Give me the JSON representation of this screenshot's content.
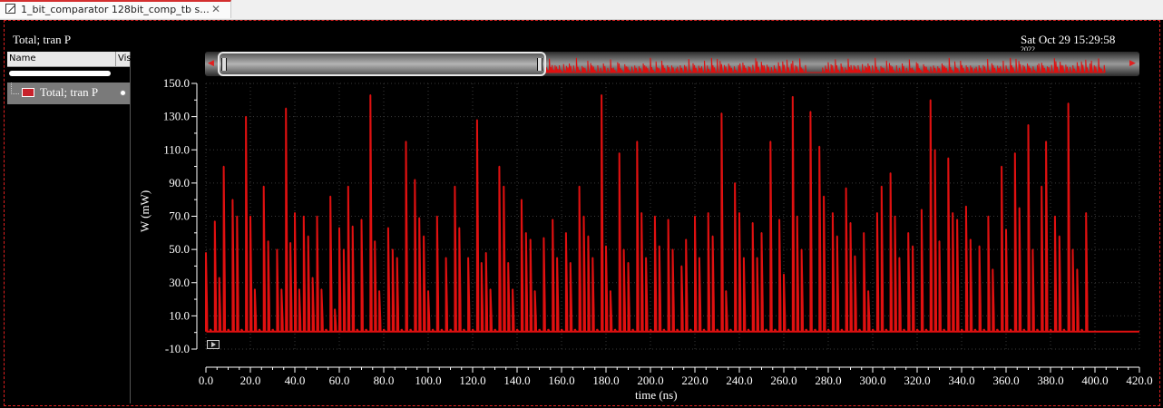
{
  "tab": {
    "label": "1_bit_comparator 128bit_comp_tb s...",
    "close": "✕"
  },
  "header": {
    "title": "Total; tran P",
    "datetime": "Sat Oct 29 15:29:58",
    "datetime_line2": "2022"
  },
  "legend": {
    "col_name": "Name",
    "col_vis": "Vis",
    "items": [
      {
        "label": "Total; tran P",
        "color": "#c8222b"
      }
    ]
  },
  "chart_data": {
    "type": "line",
    "title": "Total; tran P",
    "xlabel": "time (ns)",
    "ylabel": "W (mW)",
    "xlim": [
      0,
      420
    ],
    "ylim": [
      -10,
      150
    ],
    "grid": true,
    "series_color": "#e01010",
    "xticks": [
      "0.0",
      "20.0",
      "40.0",
      "60.0",
      "80.0",
      "100.0",
      "120.0",
      "140.0",
      "160.0",
      "180.0",
      "200.0",
      "220.0",
      "240.0",
      "260.0",
      "280.0",
      "300.0",
      "320.0",
      "340.0",
      "360.0",
      "380.0",
      "400.0",
      "420.0"
    ],
    "yticks": [
      "150.0",
      "130.0",
      "110.0",
      "90.0",
      "70.0",
      "50.0",
      "30.0",
      "10.0",
      "-10.0"
    ],
    "series": [
      {
        "name": "Total; tran P",
        "peaks": [
          [
            0,
            48
          ],
          [
            2,
            2
          ],
          [
            4,
            67
          ],
          [
            6,
            33
          ],
          [
            8,
            100
          ],
          [
            10,
            2
          ],
          [
            12,
            80
          ],
          [
            14,
            70
          ],
          [
            16,
            2
          ],
          [
            18,
            130
          ],
          [
            20,
            70
          ],
          [
            22,
            26
          ],
          [
            24,
            2
          ],
          [
            26,
            88
          ],
          [
            28,
            55
          ],
          [
            30,
            2
          ],
          [
            32,
            50
          ],
          [
            34,
            26
          ],
          [
            36,
            135
          ],
          [
            38,
            54
          ],
          [
            40,
            72
          ],
          [
            42,
            26
          ],
          [
            44,
            70
          ],
          [
            46,
            58
          ],
          [
            48,
            33
          ],
          [
            50,
            70
          ],
          [
            52,
            26
          ],
          [
            54,
            2
          ],
          [
            56,
            82
          ],
          [
            58,
            14
          ],
          [
            60,
            63
          ],
          [
            62,
            50
          ],
          [
            64,
            88
          ],
          [
            66,
            64
          ],
          [
            68,
            2
          ],
          [
            70,
            68
          ],
          [
            72,
            2
          ],
          [
            74,
            143
          ],
          [
            76,
            55
          ],
          [
            78,
            25
          ],
          [
            80,
            2
          ],
          [
            82,
            63
          ],
          [
            84,
            50
          ],
          [
            86,
            45
          ],
          [
            88,
            2
          ],
          [
            90,
            115
          ],
          [
            92,
            2
          ],
          [
            94,
            92
          ],
          [
            96,
            69
          ],
          [
            98,
            58
          ],
          [
            100,
            25
          ],
          [
            102,
            2
          ],
          [
            104,
            70
          ],
          [
            106,
            2
          ],
          [
            108,
            45
          ],
          [
            110,
            2
          ],
          [
            112,
            88
          ],
          [
            114,
            63
          ],
          [
            116,
            2
          ],
          [
            118,
            45
          ],
          [
            120,
            2
          ],
          [
            122,
            128
          ],
          [
            124,
            42
          ],
          [
            126,
            48
          ],
          [
            128,
            26
          ],
          [
            130,
            2
          ],
          [
            132,
            100
          ],
          [
            134,
            88
          ],
          [
            136,
            42
          ],
          [
            138,
            26
          ],
          [
            140,
            2
          ],
          [
            142,
            80
          ],
          [
            144,
            60
          ],
          [
            146,
            56
          ],
          [
            148,
            25
          ],
          [
            150,
            2
          ],
          [
            152,
            57
          ],
          [
            154,
            2
          ],
          [
            156,
            68
          ],
          [
            158,
            45
          ],
          [
            160,
            2
          ],
          [
            162,
            60
          ],
          [
            164,
            42
          ],
          [
            166,
            2
          ],
          [
            168,
            88
          ],
          [
            170,
            70
          ],
          [
            172,
            58
          ],
          [
            174,
            45
          ],
          [
            176,
            2
          ],
          [
            178,
            143
          ],
          [
            180,
            52
          ],
          [
            182,
            25
          ],
          [
            184,
            2
          ],
          [
            186,
            108
          ],
          [
            188,
            50
          ],
          [
            190,
            42
          ],
          [
            192,
            2
          ],
          [
            194,
            115
          ],
          [
            196,
            72
          ],
          [
            198,
            45
          ],
          [
            200,
            2
          ],
          [
            202,
            70
          ],
          [
            204,
            52
          ],
          [
            206,
            2
          ],
          [
            208,
            68
          ],
          [
            210,
            50
          ],
          [
            212,
            2
          ],
          [
            214,
            40
          ],
          [
            216,
            56
          ],
          [
            218,
            2
          ],
          [
            220,
            70
          ],
          [
            222,
            45
          ],
          [
            224,
            2
          ],
          [
            226,
            72
          ],
          [
            228,
            58
          ],
          [
            230,
            2
          ],
          [
            232,
            132
          ],
          [
            234,
            25
          ],
          [
            236,
            2
          ],
          [
            238,
            90
          ],
          [
            240,
            72
          ],
          [
            242,
            45
          ],
          [
            244,
            2
          ],
          [
            246,
            66
          ],
          [
            248,
            45
          ],
          [
            250,
            60
          ],
          [
            252,
            2
          ],
          [
            254,
            115
          ],
          [
            256,
            2
          ],
          [
            258,
            68
          ],
          [
            260,
            35
          ],
          [
            262,
            2
          ],
          [
            264,
            142
          ],
          [
            266,
            70
          ],
          [
            268,
            50
          ],
          [
            270,
            2
          ],
          [
            272,
            133
          ],
          [
            274,
            2
          ],
          [
            276,
            112
          ],
          [
            278,
            82
          ],
          [
            280,
            2
          ],
          [
            282,
            72
          ],
          [
            284,
            58
          ],
          [
            286,
            2
          ],
          [
            288,
            87
          ],
          [
            290,
            66
          ],
          [
            292,
            46
          ],
          [
            294,
            2
          ],
          [
            296,
            60
          ],
          [
            298,
            25
          ],
          [
            300,
            2
          ],
          [
            302,
            72
          ],
          [
            304,
            88
          ],
          [
            306,
            2
          ],
          [
            308,
            96
          ],
          [
            310,
            70
          ],
          [
            312,
            45
          ],
          [
            314,
            2
          ],
          [
            316,
            60
          ],
          [
            318,
            52
          ],
          [
            320,
            2
          ],
          [
            322,
            74
          ],
          [
            324,
            2
          ],
          [
            326,
            140
          ],
          [
            328,
            110
          ],
          [
            330,
            55
          ],
          [
            332,
            2
          ],
          [
            334,
            105
          ],
          [
            336,
            72
          ],
          [
            338,
            68
          ],
          [
            340,
            2
          ],
          [
            342,
            76
          ],
          [
            344,
            56
          ],
          [
            346,
            2
          ],
          [
            348,
            52
          ],
          [
            350,
            2
          ],
          [
            352,
            70
          ],
          [
            354,
            38
          ],
          [
            356,
            2
          ],
          [
            358,
            100
          ],
          [
            360,
            62
          ],
          [
            362,
            2
          ],
          [
            364,
            108
          ],
          [
            366,
            75
          ],
          [
            368,
            2
          ],
          [
            370,
            125
          ],
          [
            372,
            50
          ],
          [
            374,
            2
          ],
          [
            376,
            88
          ],
          [
            378,
            115
          ],
          [
            380,
            2
          ],
          [
            382,
            70
          ],
          [
            384,
            58
          ],
          [
            386,
            2
          ],
          [
            388,
            138
          ],
          [
            390,
            50
          ],
          [
            392,
            38
          ],
          [
            394,
            2
          ],
          [
            396,
            72
          ]
        ]
      }
    ]
  }
}
